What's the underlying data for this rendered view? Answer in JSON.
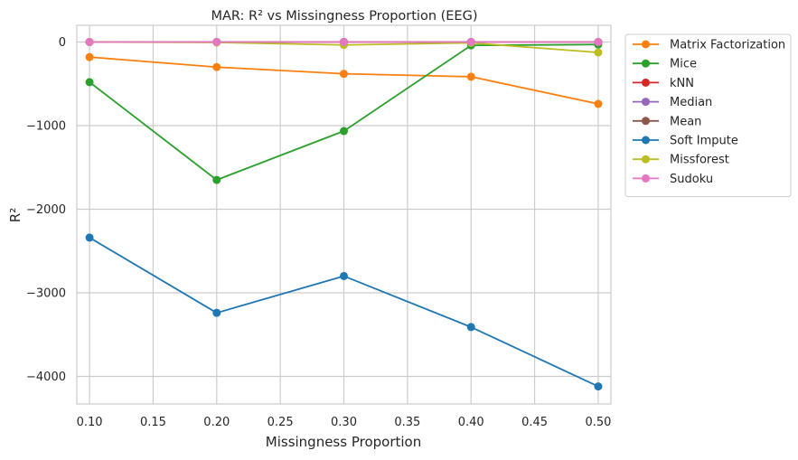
{
  "chart_data": {
    "type": "line",
    "title": "MAR: R² vs Missingness Proportion (EEG)",
    "xlabel": "Missingness Proportion",
    "ylabel": "R²",
    "xlim": [
      0.09,
      0.51
    ],
    "ylim": [
      -4330,
      200
    ],
    "x_ticks": [
      0.1,
      0.15,
      0.2,
      0.25,
      0.3,
      0.35,
      0.4,
      0.45,
      0.5
    ],
    "x_tick_labels": [
      "0.10",
      "0.15",
      "0.20",
      "0.25",
      "0.30",
      "0.35",
      "0.40",
      "0.45",
      "0.50"
    ],
    "y_ticks": [
      0,
      -1000,
      -2000,
      -3000,
      -4000
    ],
    "y_tick_labels": [
      "0",
      "−1000",
      "−2000",
      "−3000",
      "−4000"
    ],
    "grid": true,
    "legend_position": "outside-top-right",
    "x": [
      0.1,
      0.2,
      0.3,
      0.4,
      0.5
    ],
    "series": [
      {
        "name": "Matrix Factorization",
        "color": "#ff7f0e",
        "values": [
          -180,
          -300,
          -380,
          -415,
          -740
        ]
      },
      {
        "name": "Mice",
        "color": "#2ca02c",
        "values": [
          -480,
          -1650,
          -1065,
          -40,
          -30
        ]
      },
      {
        "name": "kNN",
        "color": "#d62728",
        "values": [
          0,
          0,
          0,
          0,
          0
        ]
      },
      {
        "name": "Median",
        "color": "#9467bd",
        "values": [
          0,
          0,
          0,
          0,
          0
        ]
      },
      {
        "name": "Mean",
        "color": "#8c564b",
        "values": [
          0,
          0,
          0,
          0,
          0
        ]
      },
      {
        "name": "Soft Impute",
        "color": "#1f77b4",
        "values": [
          -2340,
          -3240,
          -2800,
          -3410,
          -4120
        ]
      },
      {
        "name": "Missforest",
        "color": "#bcbd22",
        "values": [
          0,
          -5,
          -35,
          -10,
          -125
        ]
      },
      {
        "name": "Sudoku",
        "color": "#e377c2",
        "values": [
          0,
          0,
          0,
          0,
          0
        ]
      }
    ]
  }
}
